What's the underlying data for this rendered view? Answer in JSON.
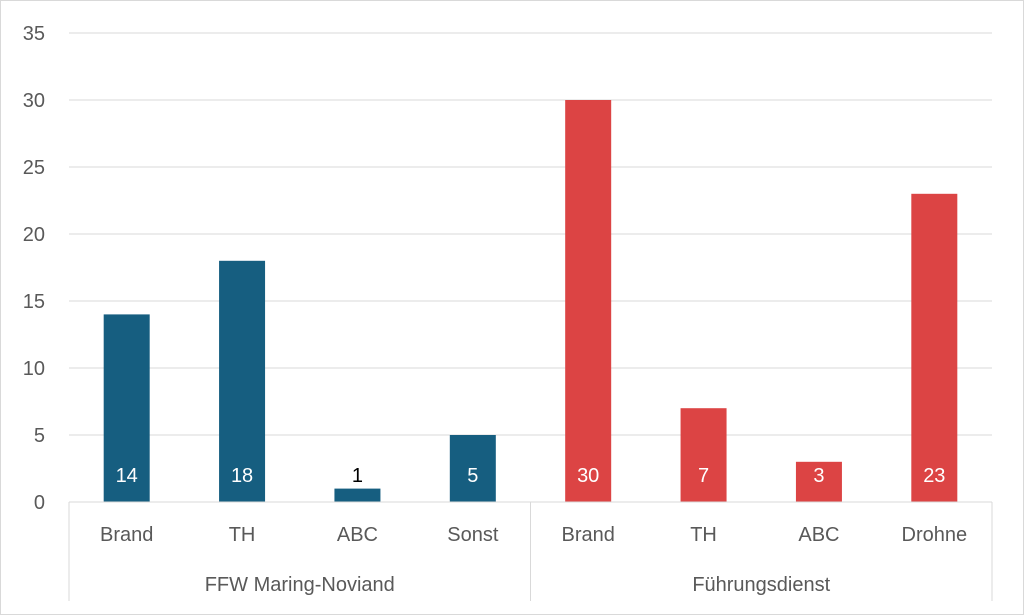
{
  "chart_data": {
    "type": "bar",
    "title": "",
    "xlabel": "",
    "ylabel": "",
    "ylim": [
      0,
      35
    ],
    "yticks": [
      0,
      5,
      10,
      15,
      20,
      25,
      30,
      35
    ],
    "grid": true,
    "legend": "none",
    "groups": [
      {
        "label": "FFW Maring-Noviand",
        "color": "#165e80",
        "categories": [
          "Brand",
          "TH",
          "ABC",
          "Sonst"
        ],
        "values": [
          14,
          18,
          1,
          5
        ]
      },
      {
        "label": "Führungsdienst",
        "color": "#dc4444",
        "categories": [
          "Brand",
          "TH",
          "ABC",
          "Drohne"
        ],
        "values": [
          30,
          7,
          3,
          23
        ]
      }
    ],
    "label_color_inside": "#ffffff",
    "label_color_outside": "#000000"
  }
}
